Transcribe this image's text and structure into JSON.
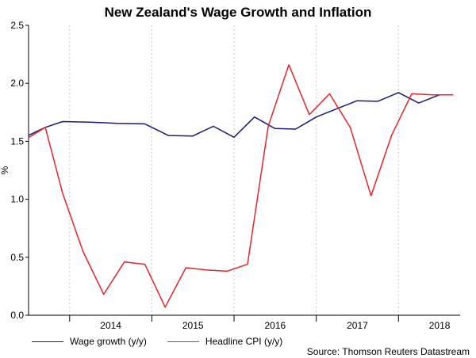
{
  "chart_data": {
    "type": "line",
    "title": "New Zealand's Wage Growth and Inflation",
    "ylabel": "%",
    "xlabel": "",
    "ylim": [
      0.0,
      2.5
    ],
    "xlim": [
      2013.5,
      2018.75
    ],
    "yticks": [
      "0.0",
      "0.5",
      "1.0",
      "1.5",
      "2.0",
      "2.5"
    ],
    "xticks": [
      "2014",
      "2015",
      "2016",
      "2017",
      "2018"
    ],
    "grid": "vertical-dotted",
    "legend_position": "bottom-left",
    "series": [
      {
        "name": "Wage growth (y/y)",
        "color": "#1a1a7e",
        "x": [
          "2013-07-01",
          "2013-09-15",
          "2013-12-01",
          "2014-04-01",
          "2014-08-01",
          "2014-12-01",
          "2015-03-15",
          "2015-07-01",
          "2015-10-01",
          "2016-01-01",
          "2016-04-01",
          "2016-07-01",
          "2016-10-01",
          "2017-01-01",
          "2017-04-01",
          "2017-07-01",
          "2017-10-01",
          "2018-01-01",
          "2018-04-01",
          "2018-07-01"
        ],
        "y": [
          1.55,
          1.62,
          1.67,
          1.665,
          1.655,
          1.65,
          1.55,
          1.545,
          1.63,
          1.535,
          1.71,
          1.61,
          1.605,
          1.71,
          1.78,
          1.85,
          1.845,
          1.92,
          1.83,
          1.9
        ]
      },
      {
        "name": "Headline CPI (y/y)",
        "color": "#e8232a",
        "x": [
          "2013-07-01",
          "2013-09-15",
          "2013-12-01",
          "2014-03-01",
          "2014-06-01",
          "2014-09-01",
          "2014-12-01",
          "2015-03-01",
          "2015-06-01",
          "2015-09-01",
          "2015-12-01",
          "2016-03-01",
          "2016-06-01",
          "2016-09-01",
          "2016-12-01",
          "2017-03-01",
          "2017-06-01",
          "2017-09-01",
          "2017-12-01",
          "2018-03-01",
          "2018-06-01",
          "2018-09-01"
        ],
        "y": [
          1.53,
          1.62,
          1.05,
          0.55,
          0.18,
          0.46,
          0.44,
          0.07,
          0.41,
          0.39,
          0.38,
          0.44,
          1.63,
          2.16,
          1.73,
          1.91,
          1.62,
          1.03,
          1.55,
          1.91,
          1.9,
          1.9
        ]
      }
    ],
    "source": "Source: Thomson Reuters Datastream"
  }
}
